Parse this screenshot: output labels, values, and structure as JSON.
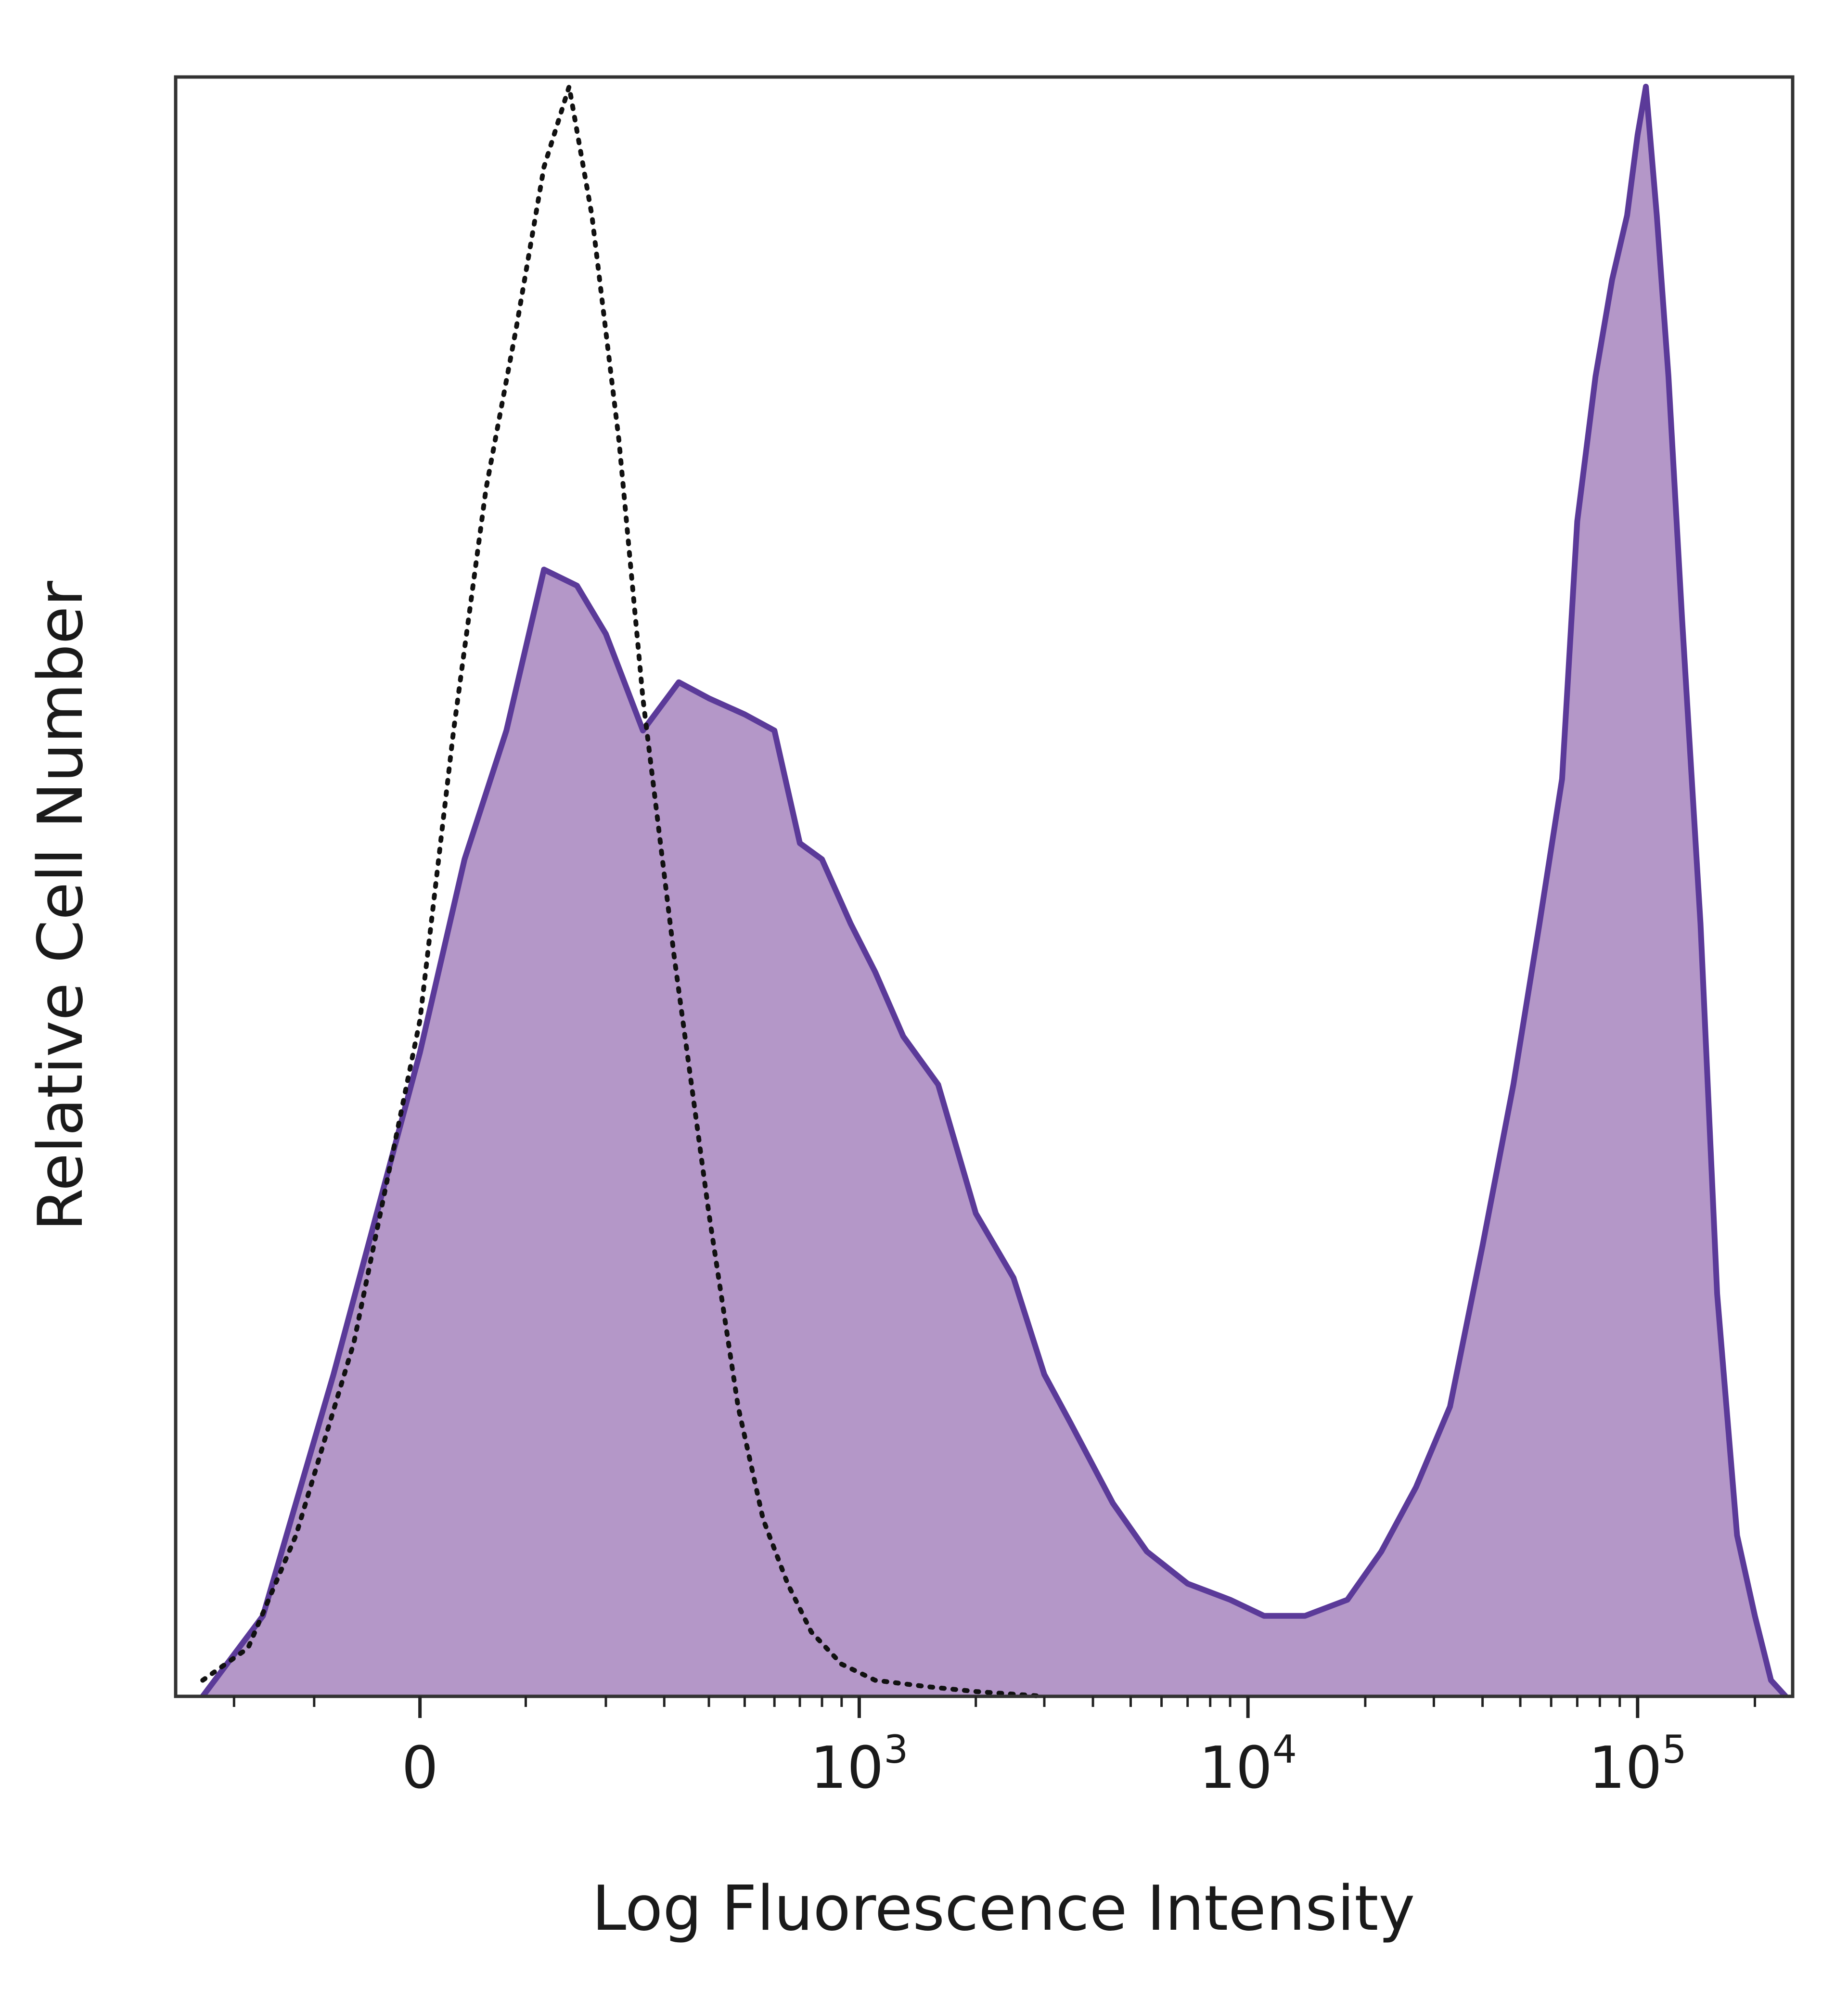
{
  "chart_data": {
    "type": "area",
    "xlabel": "Log Fluorescence Intensity",
    "ylabel": "Relative Cell Number",
    "x_scale": "biexponential",
    "xlim": [
      -300,
      250000
    ],
    "ylim": [
      0,
      100
    ],
    "grid": false,
    "legend": "none",
    "x_ticks": [
      {
        "value": 0,
        "label": "0",
        "exp": ""
      },
      {
        "value": 1000,
        "label": "10",
        "exp": "3"
      },
      {
        "value": 10000,
        "label": "10",
        "exp": "4"
      },
      {
        "value": 100000,
        "label": "10",
        "exp": "5"
      }
    ],
    "series": [
      {
        "style": "dotted-outline",
        "color": "#111111",
        "x": [
          -250,
          -180,
          -120,
          -60,
          0,
          30,
          60,
          90,
          120,
          150,
          180,
          220,
          260,
          320,
          400,
          480,
          560,
          650,
          750,
          900,
          1100,
          1500,
          2000,
          3000
        ],
        "y": [
          1,
          3,
          10,
          22,
          42,
          60,
          75,
          85,
          95,
          100,
          92,
          78,
          62,
          46,
          30,
          18,
          11,
          7,
          4,
          2,
          1,
          0.6,
          0.3,
          0
        ]
      },
      {
        "style": "filled",
        "color": "#5b3a99",
        "fill": "#b497c8",
        "x": [
          -250,
          -160,
          -80,
          0,
          40,
          80,
          120,
          160,
          200,
          260,
          330,
          400,
          500,
          600,
          700,
          800,
          950,
          1100,
          1300,
          1600,
          2000,
          2500,
          3000,
          3500,
          4500,
          5500,
          7000,
          9000,
          11000,
          14000,
          18000,
          22000,
          27000,
          33000,
          40000,
          48000,
          56000,
          64000,
          70000,
          78000,
          86000,
          94000,
          100000,
          105000,
          112000,
          120000,
          130000,
          145000,
          160000,
          180000,
          200000,
          220000,
          240000
        ],
        "y": [
          0,
          5,
          20,
          40,
          52,
          60,
          70,
          69,
          66,
          60,
          63,
          62,
          61,
          60,
          53,
          52,
          48,
          45,
          41,
          38,
          30,
          26,
          20,
          17,
          12,
          9,
          7,
          6,
          5,
          5,
          6,
          9,
          13,
          18,
          28,
          38,
          48,
          57,
          73,
          82,
          88,
          92,
          97,
          100,
          92,
          82,
          67,
          48,
          25,
          10,
          5,
          1,
          0
        ]
      }
    ]
  }
}
